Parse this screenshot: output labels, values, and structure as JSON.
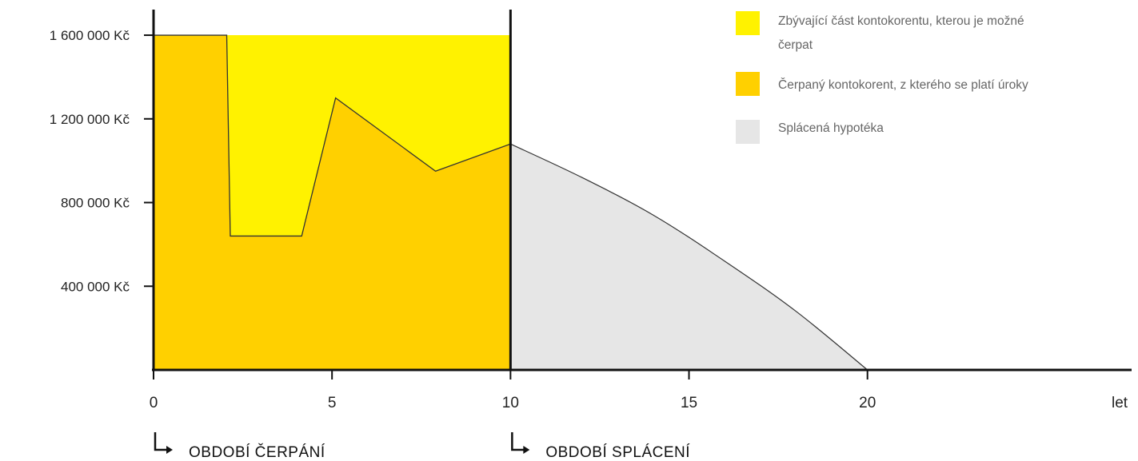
{
  "chart_data": {
    "type": "area",
    "x_unit": "let",
    "x_ticks": [
      0,
      5,
      10,
      15,
      20
    ],
    "y_ticks": [
      {
        "value": 400000,
        "label": "400 000 Kč"
      },
      {
        "value": 800000,
        "label": "800 000 Kč"
      },
      {
        "value": 1200000,
        "label": "1 200 000 Kč"
      },
      {
        "value": 1600000,
        "label": "1 600 000 Kč"
      }
    ],
    "xlim": [
      0,
      23.3
    ],
    "ylim": [
      0,
      1730000
    ],
    "drawdown_end_year": 10,
    "series": [
      {
        "name": "Zbývající část kontokorentu, kterou je možné čerpat",
        "color": "#FFF200",
        "x": [
          0,
          10
        ],
        "y": [
          1600000,
          1600000
        ]
      },
      {
        "name": "Čerpaný kontokorent, z kterého se platí úroky",
        "color": "#FFD000",
        "x": [
          0,
          2.05,
          2.15,
          4.15,
          5.1,
          7.9,
          10
        ],
        "y": [
          1600000,
          1600000,
          640000,
          640000,
          1300000,
          950000,
          1080000
        ]
      },
      {
        "name": "Splácená hypotéka",
        "color": "#E6E6E6",
        "x": [
          10,
          12,
          14,
          16,
          18,
          20
        ],
        "y": [
          1080000,
          920000,
          740000,
          520000,
          280000,
          0
        ]
      }
    ],
    "periods": [
      "OBDOBÍ ČERPÁNÍ",
      "OBDOBÍ SPLÁCENÍ"
    ]
  }
}
